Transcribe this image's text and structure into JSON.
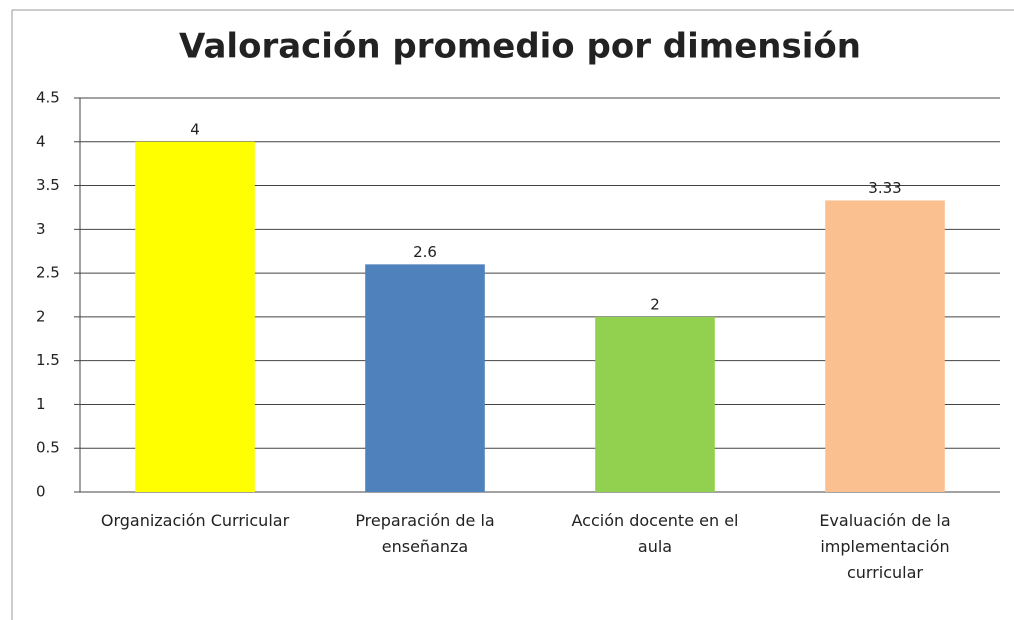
{
  "chart_data": {
    "type": "bar",
    "title": "Valoración promedio por dimensión",
    "categories": [
      "Organización Curricular",
      "Preparación de la enseñanza",
      "Acción docente en el aula",
      "Evaluación de la implementación curricular"
    ],
    "values": [
      4,
      2.6,
      2,
      3.33
    ],
    "colors": [
      "#ffff00",
      "#4f81bd",
      "#92d050",
      "#fac090"
    ],
    "ylim": [
      0,
      4.5
    ],
    "yticks": [
      0,
      0.5,
      1,
      1.5,
      2,
      2.5,
      3,
      3.5,
      4,
      4.5
    ],
    "grid": true
  }
}
